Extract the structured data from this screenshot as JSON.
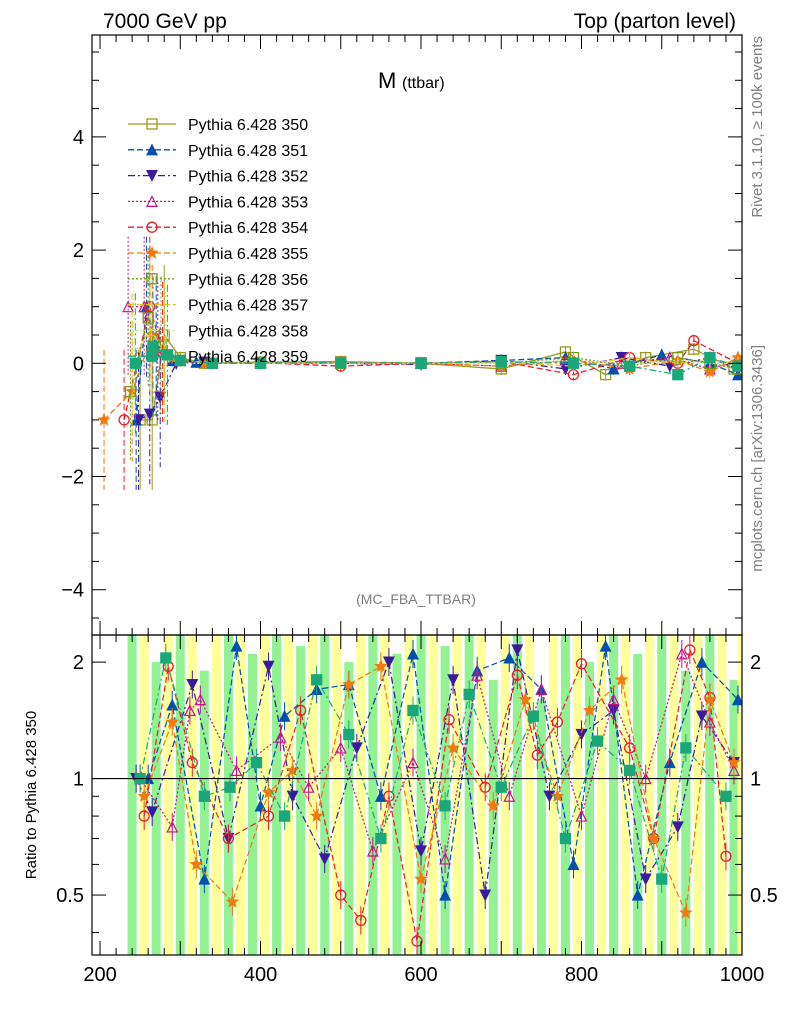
{
  "header": {
    "left": "7000 GeV pp",
    "right": "Top (parton level)"
  },
  "title_main": "M",
  "title_sub": "(ttbar)",
  "analysis_tag": "(MC_FBA_TTBAR)",
  "side_text_top": "Rivet 3.1.10, ≥ 100k events",
  "side_text_bottom": "mcplots.cern.ch [arXiv:1306.3436]",
  "ratio_ylabel": "Ratio to Pythia 6.428 350",
  "chart_data": [
    {
      "type": "line",
      "panel": "main",
      "xlim": [
        190,
        1000
      ],
      "ylim": [
        -4.8,
        5.8
      ],
      "yticks": [
        -4,
        -2,
        0,
        2,
        4
      ],
      "grid": false,
      "legend_position": "top-left",
      "series": [
        {
          "name": "Pythia 6.428 350",
          "color": "#9a9a1e",
          "marker": "open-square",
          "dash": "solid",
          "x": [
            250,
            265,
            280,
            300,
            330,
            400,
            500,
            600,
            700,
            780,
            830,
            880,
            940,
            990
          ],
          "y": [
            -1.0,
            -1.0,
            0.5,
            0.1,
            0.0,
            0.02,
            0.03,
            0.0,
            -0.1,
            0.2,
            -0.2,
            0.1,
            0.25,
            -0.1
          ]
        },
        {
          "name": "Pythia 6.428 351",
          "color": "#0050b0",
          "marker": "filled-triangle-up",
          "dash": "dashed",
          "x": [
            245,
            258,
            270,
            290,
            320,
            400,
            500,
            600,
            700,
            780,
            840,
            900,
            960,
            995
          ],
          "y": [
            -1.0,
            1.0,
            0.3,
            0.05,
            0.02,
            0.0,
            0.02,
            0.0,
            0.05,
            0.1,
            -0.1,
            0.15,
            0.0,
            -0.2
          ]
        },
        {
          "name": "Pythia 6.428 352",
          "color": "#3a1a9e",
          "marker": "filled-triangle-down",
          "dash": "dashdot",
          "x": [
            248,
            262,
            275,
            295,
            330,
            400,
            500,
            600,
            700,
            780,
            850,
            910,
            960,
            995
          ],
          "y": [
            -1.0,
            -0.9,
            -0.6,
            0.0,
            0.02,
            0.01,
            0.0,
            -0.02,
            0.05,
            -0.1,
            0.1,
            -0.05,
            0.1,
            -0.1
          ]
        },
        {
          "name": "Pythia 6.428 353",
          "color": "#c8128c",
          "marker": "open-triangle-up",
          "dash": "dotted",
          "x": [
            235,
            255,
            272,
            300,
            340,
            400,
            500,
            600,
            700,
            780,
            850,
            910,
            960,
            995
          ],
          "y": [
            1.0,
            1.0,
            0.2,
            0.05,
            0.0,
            0.02,
            0.0,
            0.0,
            -0.05,
            0.05,
            0.0,
            0.1,
            -0.1,
            0.05
          ]
        },
        {
          "name": "Pythia 6.428 354",
          "color": "#e8202a",
          "marker": "open-circle",
          "dash": "dashed",
          "x": [
            230,
            262,
            278,
            300,
            340,
            400,
            500,
            600,
            700,
            790,
            860,
            920,
            940,
            995
          ],
          "y": [
            -1.0,
            1.0,
            0.2,
            0.05,
            0.0,
            0.01,
            -0.05,
            0.0,
            0.03,
            -0.2,
            0.1,
            0.0,
            0.4,
            0.0
          ]
        },
        {
          "name": "Pythia 6.428 355",
          "color": "#f07a10",
          "marker": "filled-star",
          "dash": "dashed",
          "x": [
            205,
            240,
            265,
            290,
            330,
            400,
            500,
            600,
            700,
            790,
            860,
            920,
            960,
            995
          ],
          "y": [
            -1.0,
            -0.5,
            0.5,
            0.1,
            0.0,
            0.0,
            0.02,
            0.0,
            -0.05,
            0.05,
            -0.1,
            0.05,
            -0.15,
            0.1
          ]
        },
        {
          "name": "Pythia 6.428 356",
          "color": "#7a9a14",
          "marker": "open-square",
          "dash": "dotted",
          "x": [
            238,
            260,
            276,
            300,
            340,
            400,
            500,
            600,
            700,
            790,
            860,
            920,
            960,
            995
          ],
          "y": [
            -0.5,
            0.8,
            0.3,
            0.05,
            0.0,
            0.02,
            0.0,
            0.01,
            0.0,
            0.1,
            -0.05,
            0.1,
            0.0,
            -0.1
          ]
        },
        {
          "name": "Pythia 6.428 357",
          "color": "#d6cc14",
          "marker": "none",
          "dash": "dashed",
          "x": [
            240,
            262,
            280,
            300,
            340,
            400,
            500,
            600,
            700,
            790,
            860,
            920,
            960,
            995
          ],
          "y": [
            0.0,
            0.6,
            0.2,
            0.05,
            0.01,
            0.0,
            0.0,
            0.0,
            0.02,
            -0.05,
            0.1,
            0.0,
            0.05,
            0.0
          ]
        },
        {
          "name": "Pythia 6.428 358",
          "color": "#c8e6a0",
          "marker": "none",
          "dash": "dotted",
          "x": [
            242,
            264,
            282,
            300,
            340,
            400,
            500,
            600,
            700,
            790,
            860,
            920,
            960,
            995
          ],
          "y": [
            0.2,
            0.5,
            0.1,
            0.0,
            0.0,
            0.01,
            0.0,
            0.0,
            0.0,
            0.05,
            0.0,
            0.05,
            0.0,
            0.0
          ]
        },
        {
          "name": "Pythia 6.428 359",
          "color": "#1aa87a",
          "marker": "filled-square",
          "dash": "dashdot",
          "x": [
            244,
            266,
            284,
            300,
            340,
            400,
            500,
            600,
            700,
            790,
            860,
            920,
            960,
            995
          ],
          "y": [
            0.0,
            0.3,
            0.15,
            0.05,
            0.0,
            0.0,
            0.01,
            0.0,
            0.03,
            0.0,
            -0.05,
            -0.2,
            0.1,
            -0.05
          ]
        }
      ]
    },
    {
      "type": "line",
      "panel": "ratio",
      "xlim": [
        190,
        1000
      ],
      "ylim": [
        0.35,
        2.35
      ],
      "yticks": [
        0.5,
        1,
        2
      ],
      "xticks": [
        200,
        400,
        600,
        800,
        1000
      ],
      "reference_line": 1,
      "grid": false,
      "bands": [
        {
          "color": "#7ff07f",
          "x": [
            240,
            270,
            300,
            330,
            360,
            390,
            420,
            450,
            480,
            510,
            540,
            570,
            600,
            630,
            660,
            690,
            720,
            750,
            780,
            810,
            840,
            870,
            900,
            930,
            960,
            990
          ],
          "lo": [
            0.35,
            0.35,
            0.35,
            0.35,
            0.35,
            0.35,
            0.35,
            0.35,
            0.35,
            0.35,
            0.35,
            0.35,
            0.35,
            0.35,
            0.35,
            0.35,
            0.35,
            0.35,
            0.35,
            0.35,
            0.35,
            0.35,
            0.35,
            0.35,
            0.35,
            0.35
          ],
          "hi": [
            2.35,
            2.0,
            2.35,
            1.9,
            2.35,
            2.1,
            2.35,
            2.2,
            2.35,
            2.0,
            2.35,
            2.1,
            2.35,
            2.2,
            2.35,
            1.8,
            2.35,
            1.6,
            2.35,
            2.0,
            2.35,
            2.1,
            2.35,
            1.9,
            2.35,
            1.8
          ]
        },
        {
          "color": "#ffff88",
          "x": [
            250,
            280,
            310,
            340,
            370,
            400,
            430,
            460,
            490,
            520,
            550,
            580,
            610,
            640,
            670,
            700,
            730,
            760,
            790,
            820,
            850,
            880,
            910,
            940,
            970,
            995
          ],
          "lo": [
            0.35,
            0.35,
            0.35,
            0.35,
            0.35,
            0.35,
            0.35,
            0.35,
            0.35,
            0.35,
            0.35,
            0.35,
            0.35,
            0.35,
            0.35,
            0.35,
            0.35,
            0.35,
            0.35,
            0.35,
            0.35,
            0.35,
            0.35,
            0.35,
            0.35,
            0.35
          ],
          "hi": [
            2.35,
            2.35,
            2.35,
            2.35,
            2.35,
            2.35,
            2.35,
            2.35,
            2.35,
            2.35,
            2.35,
            2.35,
            2.35,
            2.35,
            2.35,
            2.35,
            2.35,
            2.35,
            2.35,
            2.35,
            2.35,
            2.35,
            2.35,
            2.35,
            2.35,
            2.35
          ]
        }
      ],
      "series": [
        {
          "name": "Pythia 6.428 351",
          "color": "#0050b0",
          "marker": "filled-triangle-up",
          "dash": "dashed",
          "x": [
            260,
            290,
            330,
            370,
            400,
            430,
            470,
            510,
            550,
            590,
            630,
            670,
            710,
            750,
            790,
            830,
            870,
            910,
            950,
            995
          ],
          "y": [
            1.0,
            1.55,
            0.55,
            2.2,
            0.85,
            1.45,
            1.7,
            1.75,
            0.9,
            2.1,
            0.5,
            1.9,
            2.05,
            1.7,
            0.6,
            2.2,
            0.5,
            1.1,
            2.0,
            1.6
          ]
        },
        {
          "name": "Pythia 6.428 352",
          "color": "#3a1a9e",
          "marker": "filled-triangle-down",
          "dash": "dashdot",
          "x": [
            245,
            265,
            315,
            360,
            410,
            440,
            480,
            520,
            560,
            600,
            640,
            680,
            720,
            760,
            800,
            840,
            880,
            920,
            950,
            990
          ],
          "y": [
            1.0,
            0.82,
            1.75,
            0.7,
            1.95,
            0.9,
            0.62,
            1.2,
            2.0,
            0.65,
            1.8,
            0.5,
            2.15,
            0.9,
            1.3,
            1.5,
            0.55,
            0.75,
            1.45,
            1.1
          ]
        },
        {
          "name": "Pythia 6.428 353",
          "color": "#c8128c",
          "marker": "open-triangle-up",
          "dash": "dotted",
          "x": [
            250,
            290,
            312,
            325,
            370,
            425,
            460,
            500,
            540,
            590,
            630,
            670,
            710,
            750,
            800,
            840,
            880,
            925,
            960,
            990
          ],
          "y": [
            1.0,
            0.75,
            1.5,
            1.6,
            1.05,
            1.28,
            0.95,
            1.2,
            0.65,
            1.1,
            0.62,
            1.85,
            0.9,
            1.7,
            0.8,
            1.6,
            1.0,
            2.1,
            1.4,
            1.05
          ]
        },
        {
          "name": "Pythia 6.428 354",
          "color": "#e8202a",
          "marker": "open-circle",
          "dash": "dashed",
          "x": [
            255,
            285,
            315,
            360,
            410,
            450,
            500,
            525,
            560,
            595,
            635,
            680,
            720,
            745,
            770,
            800,
            860,
            890,
            935,
            960,
            980
          ],
          "y": [
            0.8,
            1.95,
            1.1,
            0.7,
            0.8,
            1.5,
            0.5,
            0.43,
            0.9,
            0.38,
            1.42,
            0.95,
            1.85,
            1.15,
            1.4,
            1.98,
            1.2,
            0.7,
            2.15,
            1.62,
            0.63
          ]
        },
        {
          "name": "Pythia 6.428 355",
          "color": "#f07a10",
          "marker": "filled-star",
          "dash": "dashed",
          "x": [
            255,
            290,
            320,
            365,
            410,
            440,
            470,
            510,
            550,
            600,
            640,
            690,
            730,
            770,
            810,
            850,
            890,
            930,
            960,
            990
          ],
          "y": [
            0.9,
            1.4,
            0.6,
            0.48,
            0.92,
            1.05,
            0.8,
            1.75,
            1.95,
            0.55,
            1.2,
            0.85,
            1.6,
            0.9,
            1.5,
            1.8,
            0.7,
            0.45,
            1.6,
            1.1
          ]
        },
        {
          "name": "Pythia 6.428 359",
          "color": "#1aa87a",
          "marker": "filled-square",
          "dash": "dashdot",
          "x": [
            250,
            282,
            330,
            362,
            395,
            430,
            470,
            510,
            550,
            590,
            630,
            660,
            700,
            740,
            780,
            820,
            860,
            900,
            930,
            980
          ],
          "y": [
            1.0,
            2.05,
            0.9,
            0.95,
            1.1,
            0.8,
            1.8,
            1.3,
            0.7,
            1.5,
            0.85,
            1.65,
            0.95,
            1.45,
            0.7,
            1.25,
            1.05,
            0.55,
            1.2,
            0.9
          ]
        }
      ]
    }
  ]
}
